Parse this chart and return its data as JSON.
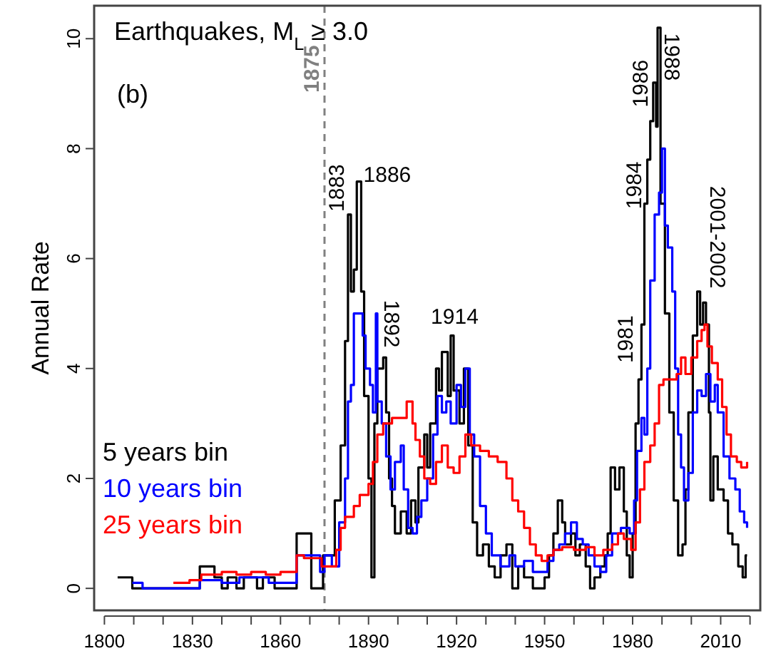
{
  "chart_data": {
    "type": "step",
    "title": "Earthquakes, M$_{L}$ ≥ 3.0",
    "ylabel": "Annual Rate",
    "xlim": [
      1796.5,
      2023.5
    ],
    "ylim": [
      -0.4,
      10.6
    ],
    "xticks": [
      1800,
      {
        "value": 1810,
        "label": null
      },
      {
        "value": 1820,
        "label": null
      },
      1830,
      {
        "value": 1840,
        "label": null
      },
      {
        "value": 1850,
        "label": null
      },
      1860,
      {
        "value": 1870,
        "label": null
      },
      {
        "value": 1880,
        "label": null
      },
      1890,
      {
        "value": 1900,
        "label": null
      },
      {
        "value": 1910,
        "label": null
      },
      1920,
      {
        "value": 1930,
        "label": null
      },
      {
        "value": 1940,
        "label": null
      },
      1950,
      {
        "value": 1960,
        "label": null
      },
      {
        "value": 1970,
        "label": null
      },
      1980,
      {
        "value": 1990,
        "label": null
      },
      {
        "value": 2000,
        "label": null
      },
      2010,
      {
        "value": 2020,
        "label": null
      }
    ],
    "yticks": [
      0,
      2,
      4,
      6,
      8,
      10
    ],
    "grid": false,
    "legend": "left",
    "line_style": "solid",
    "marker": "none",
    "ref_lines": [
      {
        "axis": "x",
        "value": 1875,
        "label": "1875",
        "color": "#808080",
        "line_style": "dashed"
      }
    ],
    "annotations": [
      "(b)",
      {
        "text": "1883",
        "x": 1883,
        "y": 6.8
      },
      {
        "text": "1886",
        "x": 1886.8,
        "y": 7.4
      },
      {
        "text": "1892",
        "x": 1893,
        "y": 4.0
      },
      {
        "text": "1914",
        "x": 1914,
        "y": 4.4
      },
      {
        "text": "1981",
        "x": 1981,
        "y": 4.1
      },
      {
        "text": "1984",
        "x": 1984,
        "y": 6.9
      },
      {
        "text": "1986",
        "x": 1986,
        "y": 8.75
      },
      {
        "text": "1988",
        "x": 1988,
        "y": 10.1
      },
      {
        "text": "2001-2002",
        "x": 2002,
        "y": 5.4
      }
    ],
    "series": [
      {
        "name": "5 years bin",
        "color": "#000000",
        "x": [
          1804.5,
          1809.5,
          1832.5,
          1837.5,
          1840,
          1842,
          1845,
          1847.5,
          1852,
          1854,
          1858,
          1865.5,
          1870.5,
          1874.5,
          1878.5,
          1880.5,
          1882,
          1883,
          1884,
          1885,
          1886,
          1887.5,
          1888.5,
          1890,
          1891,
          1892,
          1893,
          1895,
          1896,
          1897,
          1898,
          1899,
          1901,
          1903,
          1904.5,
          1906,
          1907,
          1909,
          1910,
          1911,
          1913,
          1914,
          1915,
          1917,
          1918,
          1919,
          1921,
          1922.5,
          1924,
          1925.5,
          1927,
          1929,
          1931,
          1933,
          1935,
          1937,
          1939,
          1941,
          1943,
          1946,
          1950,
          1951.5,
          1953,
          1954.5,
          1956,
          1957,
          1959,
          1960.5,
          1962,
          1964,
          1965.5,
          1967,
          1969,
          1970.5,
          1971.5,
          1972.5,
          1974,
          1975.5,
          1977,
          1978,
          1979,
          1980,
          1981,
          1982,
          1983,
          1984,
          1985,
          1986,
          1987,
          1988,
          1988.5,
          1989.5,
          1991,
          1992.5,
          1994,
          1995.5,
          1997,
          1998,
          1999,
          2000.5,
          2002,
          2003,
          2004,
          2005,
          2006,
          2006.5,
          2007.5,
          2009,
          2011,
          2012.5,
          2014,
          2016,
          2017.5,
          2018.5,
          2019
        ],
        "values": [
          0.2,
          0,
          0.4,
          0.2,
          0,
          0.2,
          0,
          0.2,
          0,
          0.2,
          0,
          1.0,
          0,
          0.6,
          1.6,
          2.6,
          4.5,
          6.8,
          5.4,
          5.8,
          7.4,
          5.4,
          3.5,
          2.0,
          0.2,
          3.0,
          4.0,
          4.2,
          3.2,
          2.0,
          1.5,
          1.0,
          1.4,
          1.0,
          1.6,
          1.2,
          2.2,
          2.8,
          2.2,
          3.0,
          4.0,
          3.6,
          4.3,
          3.5,
          4.6,
          3.6,
          3.0,
          4.0,
          2.6,
          1.2,
          0.6,
          0.8,
          0.4,
          0.2,
          0.6,
          0.8,
          0,
          0.4,
          0.2,
          0,
          0.2,
          0.6,
          1.0,
          1.6,
          1.2,
          0.8,
          1.0,
          0.6,
          0.8,
          0.4,
          0,
          0.2,
          0.4,
          0.6,
          1.0,
          2.2,
          1.8,
          2.2,
          1.4,
          0.6,
          0.2,
          1.0,
          3.0,
          3.8,
          4.8,
          7.0,
          7.8,
          8.5,
          9.2,
          8.4,
          10.2,
          7.0,
          5.0,
          3.2,
          1.6,
          0.6,
          0.8,
          1.8,
          3.2,
          4.6,
          5.4,
          4.8,
          5.2,
          4.8,
          3.2,
          1.6,
          2.4,
          1.8,
          1.6,
          1.0,
          0.8,
          0.4,
          0.2,
          0.6,
          0.6
        ]
      },
      {
        "name": "10 years bin",
        "color": "#0000ff",
        "x": [
          1809.5,
          1813,
          1832.5,
          1840,
          1846,
          1856,
          1865.5,
          1870.5,
          1873.5,
          1875,
          1877.5,
          1880,
          1882,
          1883,
          1884,
          1885,
          1888,
          1889,
          1890.5,
          1891.5,
          1892.5,
          1893,
          1894.5,
          1896,
          1897.5,
          1899,
          1901,
          1902,
          1903.5,
          1905,
          1906.5,
          1908,
          1910,
          1912,
          1913.5,
          1915,
          1916.5,
          1918,
          1920,
          1921.5,
          1923,
          1924.5,
          1926,
          1928,
          1930,
          1932,
          1935,
          1938,
          1940,
          1943,
          1946,
          1949,
          1951,
          1953,
          1955,
          1957,
          1959,
          1961,
          1963,
          1965,
          1967,
          1969,
          1971,
          1973,
          1976,
          1979,
          1980.5,
          1981.5,
          1983,
          1984,
          1985,
          1986,
          1987.5,
          1989,
          1990,
          1991,
          1992,
          1993.5,
          1994.5,
          1995.5,
          1996.5,
          1997.5,
          1999,
          2000.5,
          2002,
          2003.5,
          2005,
          2006.5,
          2008,
          2009,
          2011,
          2013,
          2015,
          2016.5,
          2018,
          2019
        ],
        "values": [
          0.1,
          0,
          0.15,
          0.1,
          0.2,
          0.1,
          0.6,
          0.6,
          0.3,
          0.6,
          0.4,
          1.2,
          2.0,
          3.4,
          3.7,
          5.0,
          4.6,
          4.0,
          3.7,
          3.2,
          5.0,
          3.4,
          3.0,
          2.4,
          1.8,
          2.3,
          2.6,
          1.8,
          1.1,
          1.0,
          1.3,
          1.6,
          2.0,
          2.8,
          3.5,
          3.2,
          3.4,
          3.0,
          3.7,
          3.3,
          4.0,
          2.8,
          2.4,
          1.5,
          1.0,
          0.6,
          0.4,
          0.6,
          0.4,
          0.5,
          0.3,
          0.3,
          0.5,
          0.7,
          0.8,
          1.0,
          1.2,
          0.9,
          0.8,
          0.6,
          0.4,
          0.3,
          0.6,
          1.0,
          1.1,
          1.0,
          1.6,
          2.5,
          3.1,
          2.8,
          4.0,
          5.6,
          6.8,
          7.2,
          8.0,
          6.6,
          6.2,
          5.4,
          4.0,
          2.8,
          2.2,
          1.6,
          2.1,
          3.2,
          3.6,
          3.5,
          3.9,
          3.4,
          3.7,
          3.2,
          2.4,
          2.0,
          1.8,
          1.4,
          1.2,
          1.1
        ]
      },
      {
        "name": "25 years bin",
        "color": "#ff0000",
        "x": [
          1823.5,
          1829,
          1833,
          1840,
          1845,
          1850,
          1855,
          1860,
          1865.5,
          1868,
          1874,
          1877,
          1879,
          1880.5,
          1882,
          1885,
          1887,
          1890,
          1891.5,
          1893,
          1895,
          1898,
          1901,
          1903,
          1905,
          1906,
          1907.5,
          1909,
          1911,
          1913,
          1915,
          1917,
          1919,
          1921,
          1923,
          1925,
          1928,
          1931,
          1934,
          1937,
          1939,
          1941,
          1943,
          1945,
          1947,
          1949,
          1951,
          1953,
          1956,
          1960,
          1964,
          1967,
          1970,
          1973,
          1975,
          1977,
          1979.5,
          1981,
          1982.5,
          1984,
          1986,
          1987.5,
          1989,
          1990.5,
          1993,
          1995,
          1996.5,
          1998,
          2000,
          2002,
          2003.5,
          2004.5,
          2005.5,
          2007,
          2009,
          2010.5,
          2012,
          2013.5,
          2015.5,
          2017,
          2019
        ],
        "values": [
          0.1,
          0.15,
          0.25,
          0.3,
          0.25,
          0.3,
          0.25,
          0.3,
          0.6,
          0.55,
          0.4,
          0.4,
          0.7,
          1.1,
          1.3,
          1.5,
          1.7,
          1.9,
          2.3,
          2.8,
          3.0,
          3.1,
          3.1,
          3.4,
          3.0,
          2.7,
          2.4,
          2.0,
          1.9,
          2.3,
          2.6,
          2.2,
          2.1,
          2.4,
          2.8,
          2.6,
          2.5,
          2.4,
          2.3,
          2.0,
          1.6,
          1.4,
          1.1,
          0.8,
          0.6,
          0.5,
          0.6,
          0.7,
          0.75,
          0.7,
          0.75,
          0.6,
          0.7,
          0.8,
          1.0,
          0.9,
          0.7,
          1.2,
          1.8,
          2.3,
          2.6,
          3.0,
          3.7,
          3.8,
          3.8,
          3.9,
          4.2,
          3.9,
          4.2,
          4.5,
          4.7,
          4.8,
          4.4,
          4.1,
          3.8,
          3.3,
          2.8,
          2.4,
          2.3,
          2.2,
          2.3
        ]
      }
    ]
  }
}
